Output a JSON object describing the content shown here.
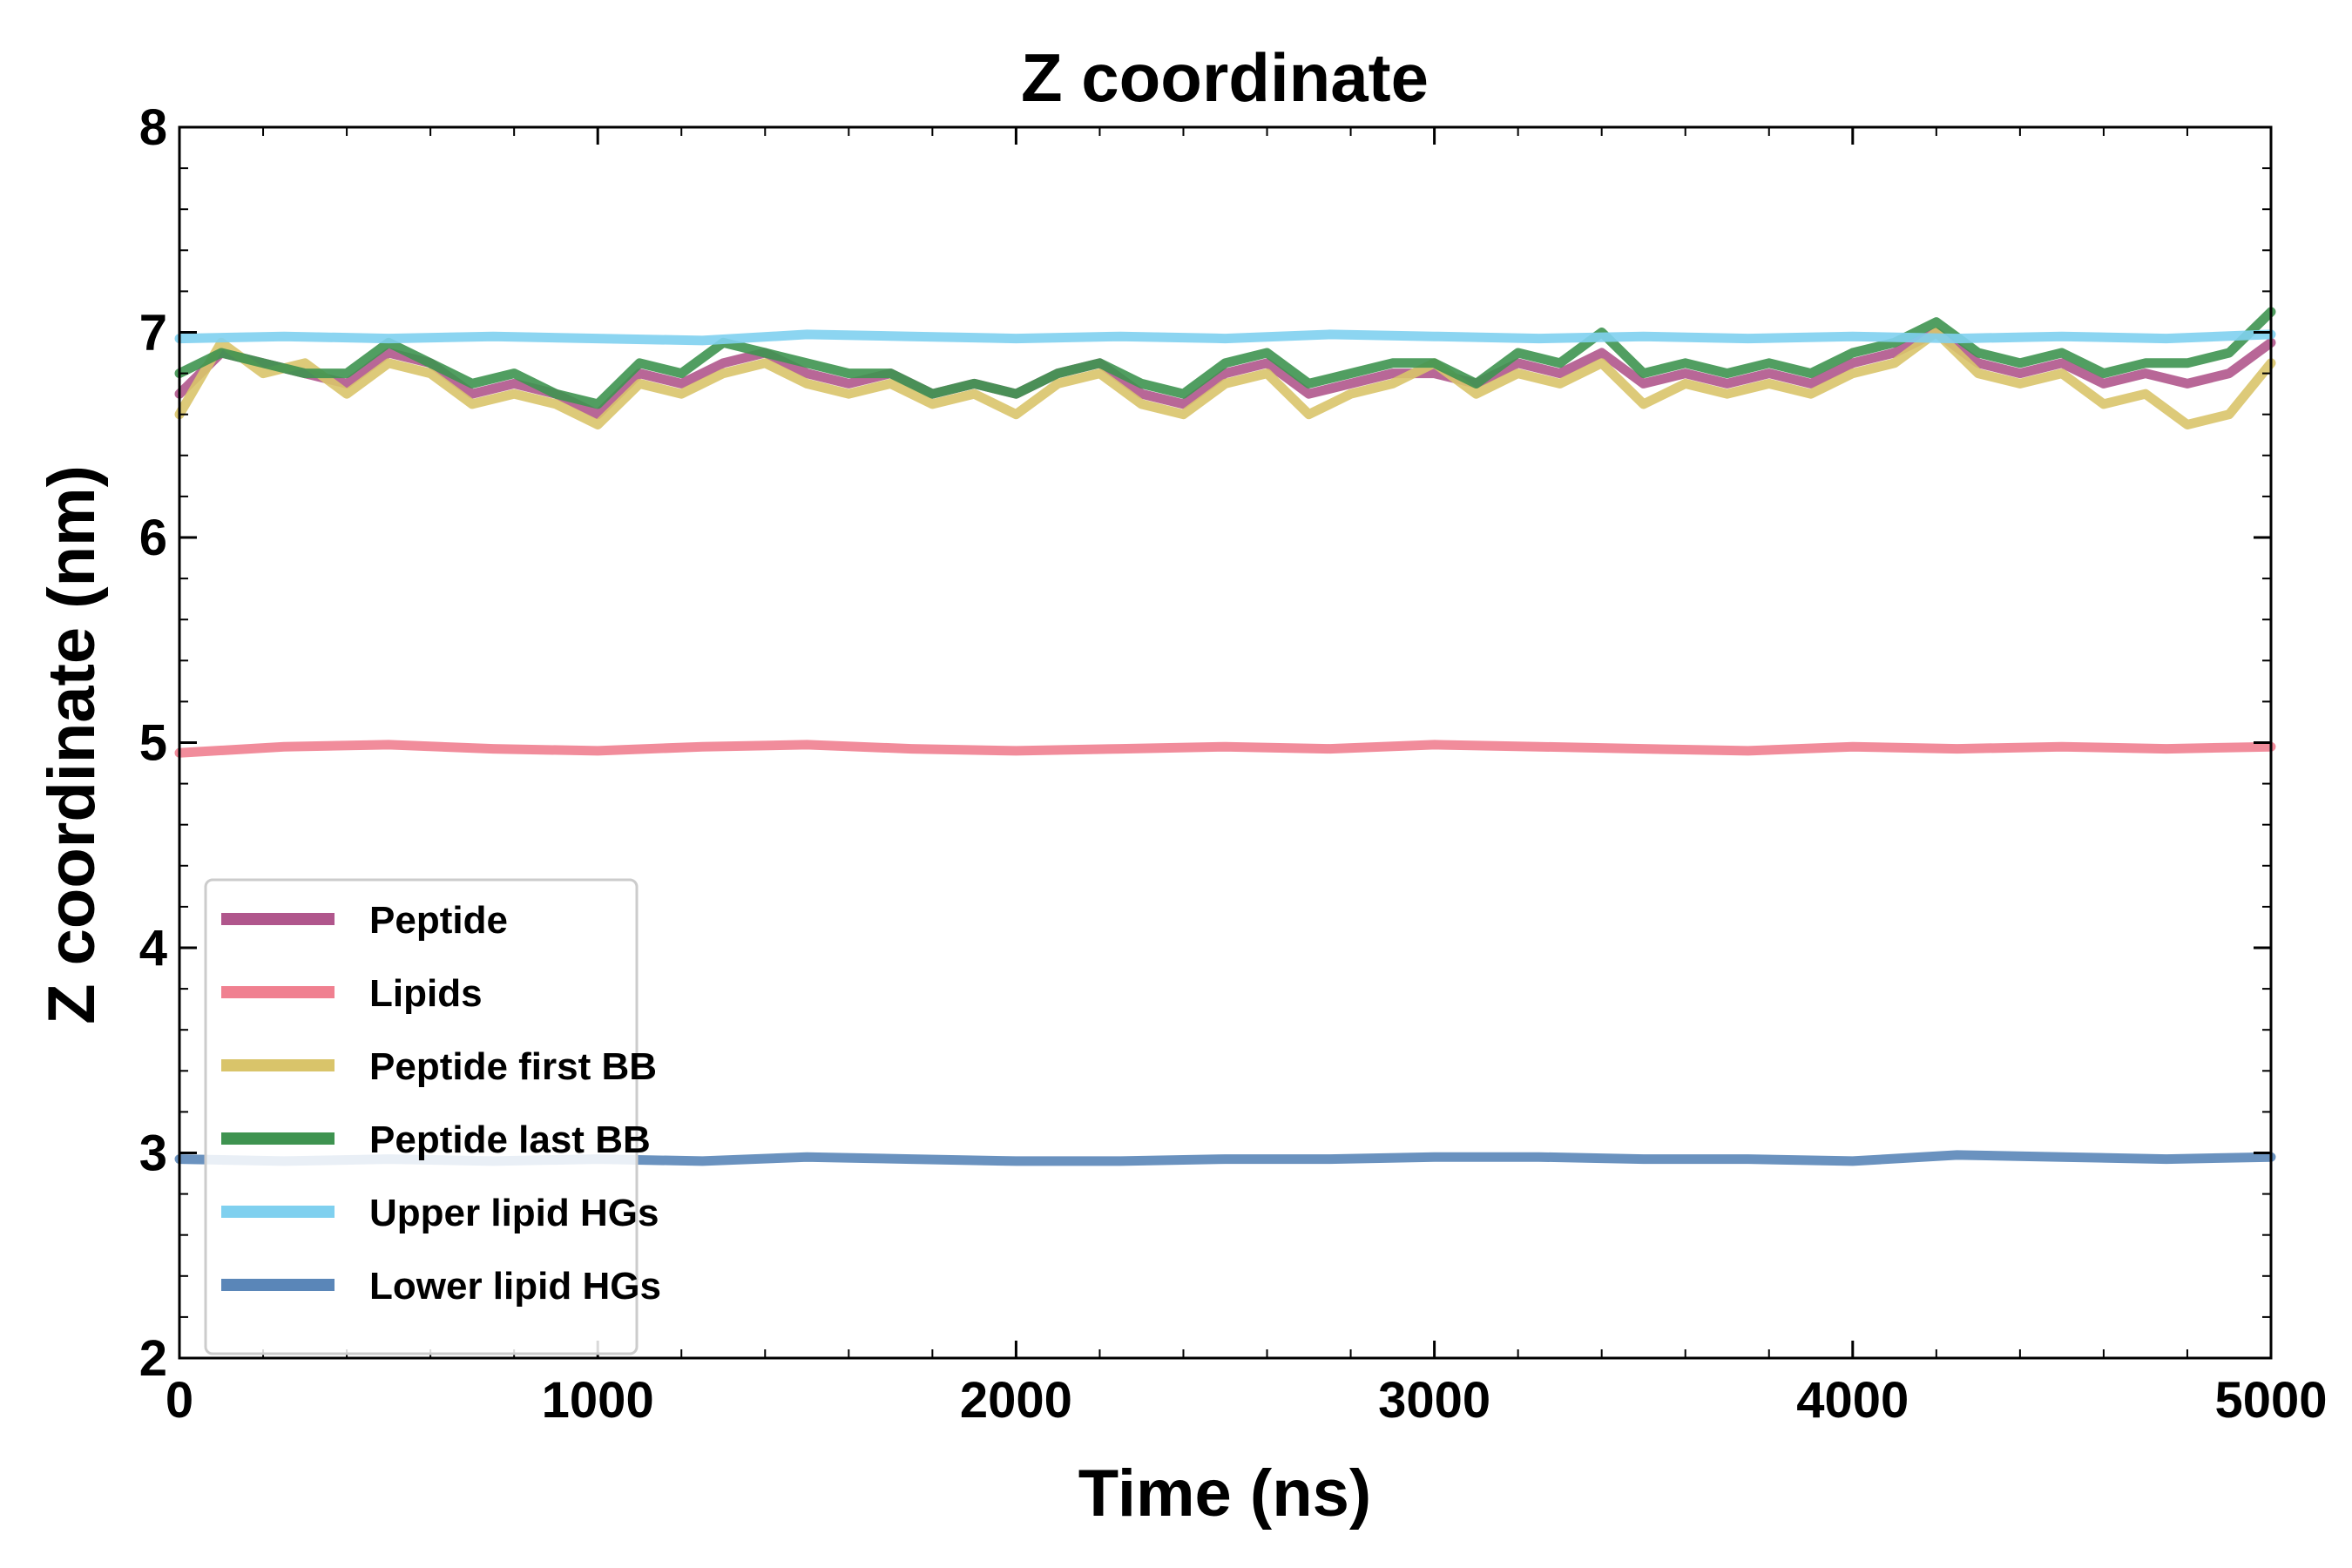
{
  "chart_data": {
    "type": "line",
    "title": "Z coordinate",
    "xlabel": "Time (ns)",
    "ylabel": "Z coordinate (nm)",
    "xlim": [
      0,
      5000
    ],
    "ylim": [
      2,
      8
    ],
    "xticks": [
      0,
      1000,
      2000,
      3000,
      4000,
      5000
    ],
    "yticks": [
      2,
      3,
      4,
      5,
      6,
      7,
      8
    ],
    "grid": false,
    "legend_position": "lower-left",
    "series": [
      {
        "name": "Peptide",
        "color": "#b0568c",
        "x": [
          0,
          100,
          200,
          300,
          400,
          500,
          600,
          700,
          800,
          900,
          1000,
          1100,
          1200,
          1300,
          1400,
          1500,
          1600,
          1700,
          1800,
          1900,
          2000,
          2100,
          2200,
          2300,
          2400,
          2500,
          2600,
          2700,
          2800,
          2900,
          3000,
          3100,
          3200,
          3300,
          3400,
          3500,
          3600,
          3700,
          3800,
          3900,
          4000,
          4100,
          4200,
          4300,
          4400,
          4500,
          4600,
          4700,
          4800,
          4900,
          5000
        ],
        "values": [
          6.7,
          6.9,
          6.85,
          6.8,
          6.75,
          6.9,
          6.85,
          6.7,
          6.75,
          6.7,
          6.6,
          6.8,
          6.75,
          6.85,
          6.9,
          6.8,
          6.75,
          6.8,
          6.7,
          6.75,
          6.7,
          6.8,
          6.85,
          6.7,
          6.65,
          6.8,
          6.85,
          6.7,
          6.75,
          6.8,
          6.8,
          6.75,
          6.85,
          6.8,
          6.9,
          6.75,
          6.8,
          6.75,
          6.8,
          6.75,
          6.85,
          6.9,
          7.0,
          6.85,
          6.8,
          6.85,
          6.75,
          6.8,
          6.75,
          6.8,
          6.95
        ]
      },
      {
        "name": "Lipids",
        "color": "#f08090",
        "x": [
          0,
          250,
          500,
          750,
          1000,
          1250,
          1500,
          1750,
          2000,
          2250,
          2500,
          2750,
          3000,
          3250,
          3500,
          3750,
          4000,
          4250,
          4500,
          4750,
          5000
        ],
        "values": [
          4.95,
          4.98,
          4.99,
          4.97,
          4.96,
          4.98,
          4.99,
          4.97,
          4.96,
          4.97,
          4.98,
          4.97,
          4.99,
          4.98,
          4.97,
          4.96,
          4.98,
          4.97,
          4.98,
          4.97,
          4.98
        ]
      },
      {
        "name": "Peptide first BB",
        "color": "#d9c46a",
        "x": [
          0,
          100,
          200,
          300,
          400,
          500,
          600,
          700,
          800,
          900,
          1000,
          1100,
          1200,
          1300,
          1400,
          1500,
          1600,
          1700,
          1800,
          1900,
          2000,
          2100,
          2200,
          2300,
          2400,
          2500,
          2600,
          2700,
          2800,
          2900,
          3000,
          3100,
          3200,
          3300,
          3400,
          3500,
          3600,
          3700,
          3800,
          3900,
          4000,
          4100,
          4200,
          4300,
          4400,
          4500,
          4600,
          4700,
          4800,
          4900,
          5000
        ],
        "values": [
          6.6,
          6.95,
          6.8,
          6.85,
          6.7,
          6.85,
          6.8,
          6.65,
          6.7,
          6.65,
          6.55,
          6.75,
          6.7,
          6.8,
          6.85,
          6.75,
          6.7,
          6.75,
          6.65,
          6.7,
          6.6,
          6.75,
          6.8,
          6.65,
          6.6,
          6.75,
          6.8,
          6.6,
          6.7,
          6.75,
          6.85,
          6.7,
          6.8,
          6.75,
          6.85,
          6.65,
          6.75,
          6.7,
          6.75,
          6.7,
          6.8,
          6.85,
          7.0,
          6.8,
          6.75,
          6.8,
          6.65,
          6.7,
          6.55,
          6.6,
          6.85
        ]
      },
      {
        "name": "Peptide last BB",
        "color": "#3e9350",
        "x": [
          0,
          100,
          200,
          300,
          400,
          500,
          600,
          700,
          800,
          900,
          1000,
          1100,
          1200,
          1300,
          1400,
          1500,
          1600,
          1700,
          1800,
          1900,
          2000,
          2100,
          2200,
          2300,
          2400,
          2500,
          2600,
          2700,
          2800,
          2900,
          3000,
          3100,
          3200,
          3300,
          3400,
          3500,
          3600,
          3700,
          3800,
          3900,
          4000,
          4100,
          4200,
          4300,
          4400,
          4500,
          4600,
          4700,
          4800,
          4900,
          5000
        ],
        "values": [
          6.8,
          6.9,
          6.85,
          6.8,
          6.8,
          6.95,
          6.85,
          6.75,
          6.8,
          6.7,
          6.65,
          6.85,
          6.8,
          6.95,
          6.9,
          6.85,
          6.8,
          6.8,
          6.7,
          6.75,
          6.7,
          6.8,
          6.85,
          6.75,
          6.7,
          6.85,
          6.9,
          6.75,
          6.8,
          6.85,
          6.85,
          6.75,
          6.9,
          6.85,
          7.0,
          6.8,
          6.85,
          6.8,
          6.85,
          6.8,
          6.9,
          6.95,
          7.05,
          6.9,
          6.85,
          6.9,
          6.8,
          6.85,
          6.85,
          6.9,
          7.1
        ]
      },
      {
        "name": "Upper lipid HGs",
        "color": "#7fd0ef",
        "x": [
          0,
          250,
          500,
          750,
          1000,
          1250,
          1500,
          1750,
          2000,
          2250,
          2500,
          2750,
          3000,
          3250,
          3500,
          3750,
          4000,
          4250,
          4500,
          4750,
          5000
        ],
        "values": [
          6.97,
          6.98,
          6.97,
          6.98,
          6.97,
          6.96,
          6.99,
          6.98,
          6.97,
          6.98,
          6.97,
          6.99,
          6.98,
          6.97,
          6.98,
          6.97,
          6.98,
          6.97,
          6.98,
          6.97,
          6.99
        ]
      },
      {
        "name": "Lower lipid HGs",
        "color": "#5a86b8",
        "x": [
          0,
          250,
          500,
          750,
          1000,
          1250,
          1500,
          1750,
          2000,
          2250,
          2500,
          2750,
          3000,
          3250,
          3500,
          3750,
          4000,
          4250,
          4500,
          4750,
          5000
        ],
        "values": [
          2.97,
          2.96,
          2.97,
          2.96,
          2.97,
          2.96,
          2.98,
          2.97,
          2.96,
          2.96,
          2.97,
          2.97,
          2.98,
          2.98,
          2.97,
          2.97,
          2.96,
          2.99,
          2.98,
          2.97,
          2.98
        ]
      }
    ]
  }
}
